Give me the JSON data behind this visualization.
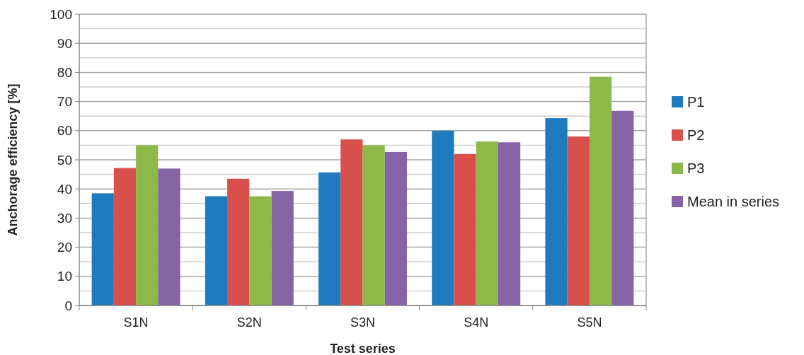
{
  "chart_data": {
    "type": "bar",
    "xlabel": "Test series",
    "ylabel": "Anchorage efficiency [%]",
    "categories": [
      "S1N",
      "S2N",
      "S3N",
      "S4N",
      "S5N"
    ],
    "series": [
      {
        "name": "P1",
        "color": "#1f7bbf",
        "values": [
          38.5,
          37.5,
          45.7,
          60,
          64.3
        ]
      },
      {
        "name": "P2",
        "color": "#d94f4b",
        "values": [
          47.2,
          43.5,
          57,
          52,
          58
        ]
      },
      {
        "name": "P3",
        "color": "#8db94a",
        "values": [
          55,
          37.5,
          55,
          56.3,
          78.5
        ]
      },
      {
        "name": "Mean in series",
        "color": "#8563a5",
        "values": [
          47,
          39.3,
          52.7,
          56,
          66.8
        ]
      }
    ],
    "ylim": [
      0,
      100
    ],
    "yticks": [
      0,
      10,
      20,
      30,
      40,
      50,
      60,
      70,
      80,
      90,
      100
    ],
    "grid": "y",
    "legend": "right"
  }
}
